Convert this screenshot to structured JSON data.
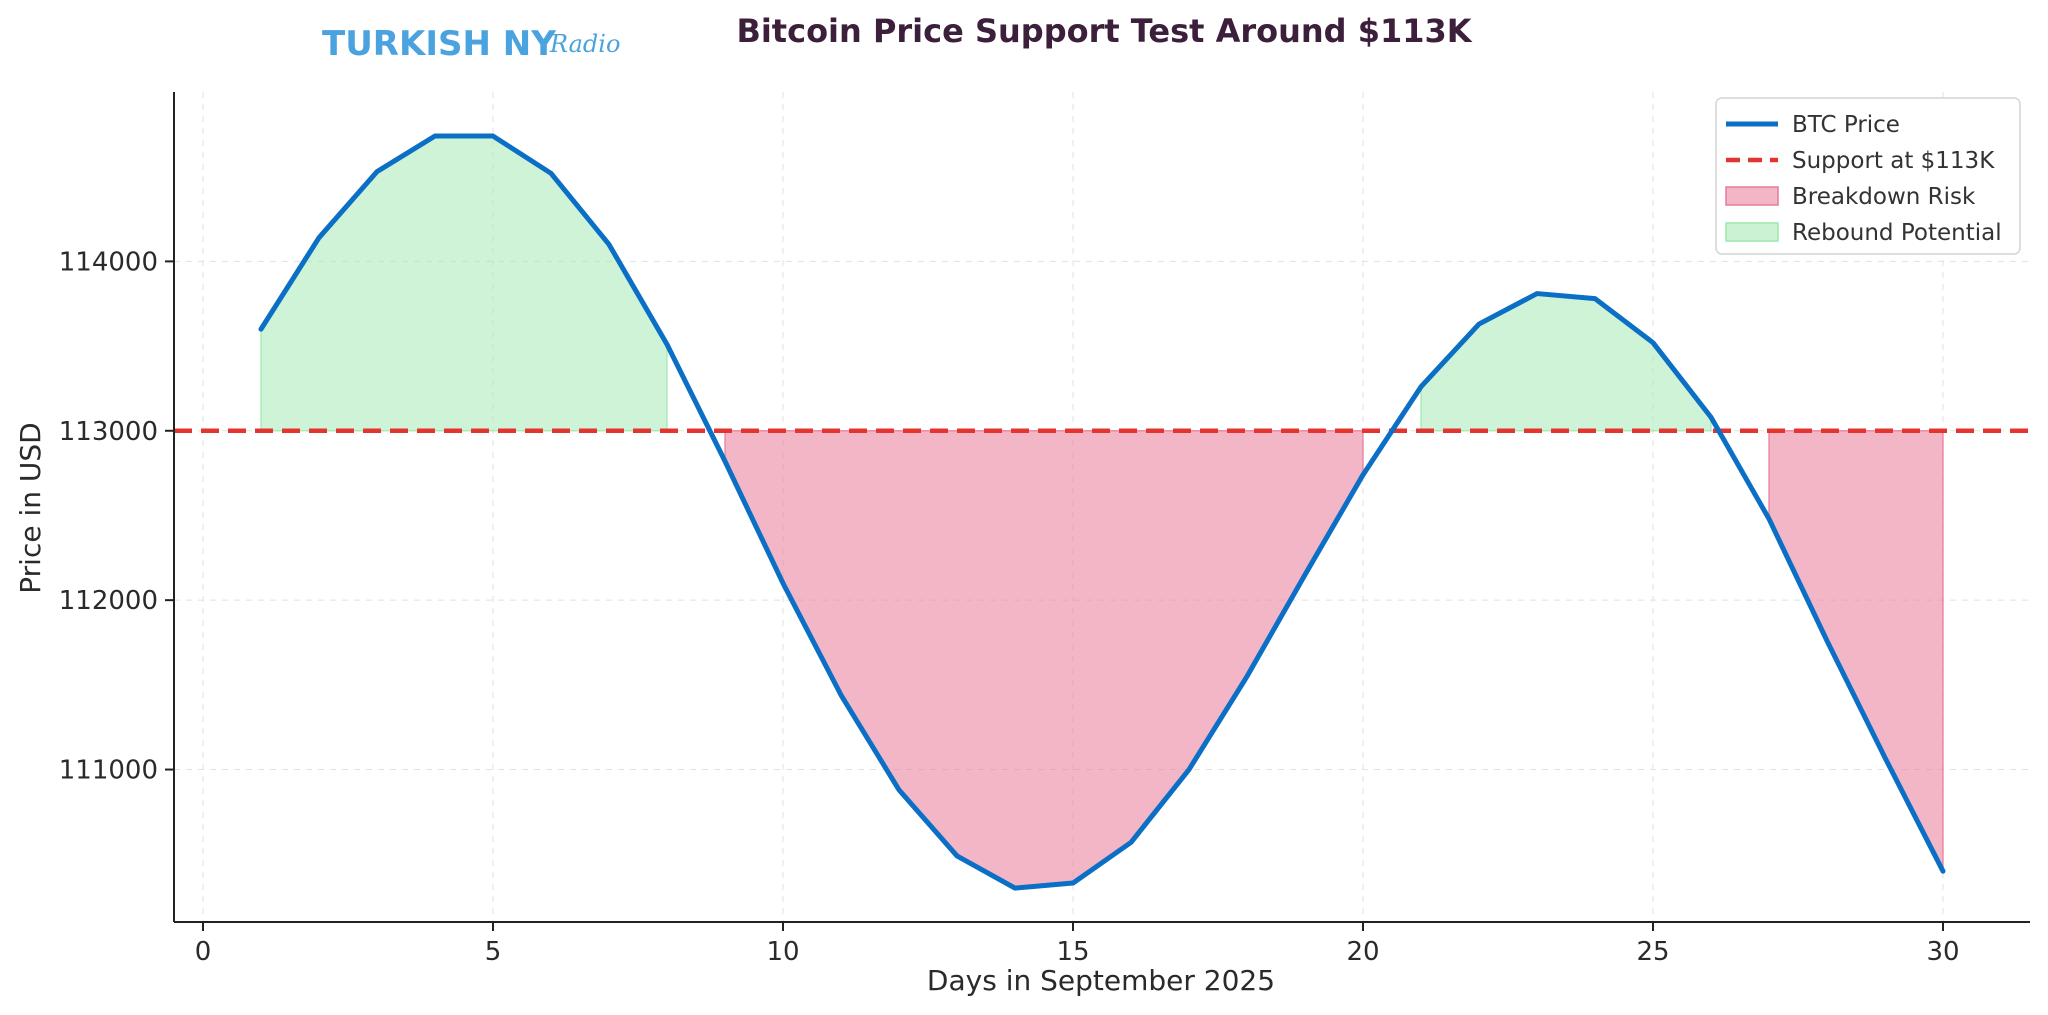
{
  "brand": {
    "logo_main": "TURKISH NY",
    "logo_script": "Radio"
  },
  "chart_data": {
    "type": "line",
    "title": "Bitcoin Price Support Test Around $113K",
    "xlabel": "Days in September 2025",
    "ylabel": "Price in USD",
    "xlim": [
      -0.5,
      31.5
    ],
    "ylim": [
      110100,
      115000
    ],
    "xticks": [
      0,
      5,
      10,
      15,
      20,
      25,
      30
    ],
    "yticks": [
      111000,
      112000,
      113000,
      114000
    ],
    "grid": true,
    "legend_position": "top-right",
    "support_level": 113000,
    "x": [
      1,
      2,
      3,
      4,
      5,
      6,
      7,
      8,
      9,
      10,
      11,
      12,
      13,
      14,
      15,
      16,
      17,
      18,
      19,
      20,
      21,
      22,
      23,
      24,
      25,
      26,
      27,
      28,
      29,
      30
    ],
    "series": [
      {
        "name": "BTC Price",
        "color": "#0b6fc6",
        "values": [
          113600,
          114140,
          114530,
          114740,
          114740,
          114520,
          114100,
          113510,
          112820,
          112100,
          111440,
          110880,
          110490,
          110300,
          110330,
          110570,
          111000,
          111550,
          112150,
          112740,
          113260,
          113630,
          113810,
          113780,
          113520,
          113080,
          112480,
          111760,
          111070,
          110400
        ]
      }
    ],
    "reference_lines": [
      {
        "name": "Support at $113K",
        "value": 113000,
        "color": "#e3342f",
        "style": "dashed"
      }
    ],
    "fills": [
      {
        "name": "Breakdown Risk",
        "color": "#e77a98",
        "opacity": 0.55,
        "condition": "below",
        "segments": [
          [
            9,
            20
          ],
          [
            27,
            30
          ]
        ]
      },
      {
        "name": "Rebound Potential",
        "color": "#9ee8ae",
        "opacity": 0.5,
        "condition": "above",
        "segments": [
          [
            1,
            8
          ],
          [
            21,
            26
          ]
        ]
      }
    ],
    "legend": [
      {
        "label": "BTC Price",
        "kind": "line",
        "color": "#0b6fc6"
      },
      {
        "label": "Support at $113K",
        "kind": "dashed",
        "color": "#e3342f"
      },
      {
        "label": "Breakdown Risk",
        "kind": "patch",
        "color": "#e77a98"
      },
      {
        "label": "Rebound Potential",
        "kind": "patch",
        "color": "#9ee8ae"
      }
    ]
  }
}
